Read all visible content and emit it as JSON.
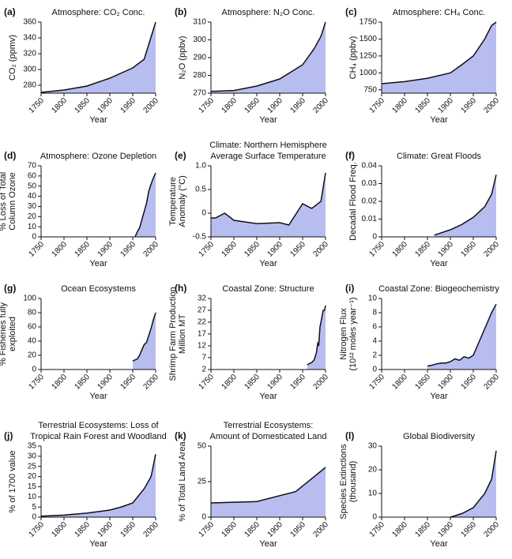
{
  "chart_data": [
    {
      "type": "area",
      "label": "(a)",
      "title": [
        "Atmosphere: CO₂ Conc."
      ],
      "ylabel": [
        "CO₂ (ppmv)"
      ],
      "xlabel": "Year",
      "x": [
        1750,
        1800,
        1850,
        1900,
        1950,
        1975,
        2000
      ],
      "values": [
        271,
        274,
        279,
        289,
        302,
        313,
        360
      ],
      "xlim": [
        1750,
        2000
      ],
      "xticks": [
        1750,
        1800,
        1850,
        1900,
        1950,
        2000
      ],
      "ylim": [
        270,
        360
      ],
      "yticks": [
        280,
        300,
        320,
        340,
        360
      ],
      "color": "#b8bdf0"
    },
    {
      "type": "area",
      "label": "(b)",
      "title": [
        "Atmosphere: N₂O Conc."
      ],
      "ylabel": [
        "N₂O (ppbv)"
      ],
      "xlabel": "Year",
      "x": [
        1750,
        1800,
        1850,
        1900,
        1950,
        1975,
        1990,
        2000
      ],
      "values": [
        271,
        271.5,
        274,
        278,
        286,
        295,
        302,
        310
      ],
      "xlim": [
        1750,
        2000
      ],
      "xticks": [
        1750,
        1800,
        1850,
        1900,
        1950,
        2000
      ],
      "ylim": [
        270,
        310
      ],
      "yticks": [
        270,
        280,
        290,
        300,
        310
      ],
      "color": "#b8bdf0"
    },
    {
      "type": "area",
      "label": "(c)",
      "title": [
        "Atmosphere: CH₄ Conc."
      ],
      "ylabel": [
        "CH₄ (ppbv)"
      ],
      "xlabel": "Year",
      "x": [
        1750,
        1800,
        1850,
        1900,
        1925,
        1950,
        1975,
        1990,
        2000
      ],
      "values": [
        840,
        870,
        920,
        1000,
        1120,
        1250,
        1500,
        1700,
        1750
      ],
      "xlim": [
        1750,
        2000
      ],
      "xticks": [
        1750,
        1800,
        1850,
        1900,
        1950,
        2000
      ],
      "ylim": [
        700,
        1750
      ],
      "yticks": [
        750,
        1000,
        1250,
        1500,
        1750
      ],
      "color": "#b8bdf0"
    },
    {
      "type": "area",
      "label": "(d)",
      "title": [
        "Atmosphere: Ozone Depletion"
      ],
      "ylabel": [
        "% Loss of Total",
        "Column Ozone"
      ],
      "xlabel": "Year",
      "x": [
        1955,
        1960,
        1965,
        1970,
        1975,
        1980,
        1985,
        1990,
        1995,
        2000
      ],
      "values": [
        0,
        5,
        9,
        17,
        25,
        33,
        45,
        52,
        58,
        63
      ],
      "xlim": [
        1750,
        2000
      ],
      "xticks": [
        1750,
        1800,
        1850,
        1900,
        1950,
        2000
      ],
      "ylim": [
        0,
        70
      ],
      "yticks": [
        0,
        10,
        20,
        30,
        40,
        50,
        60,
        70
      ],
      "color": "#b8bdf0"
    },
    {
      "type": "area",
      "label": "(e)",
      "title": [
        "Climate: Northern Hemisphere",
        "Average Surface Temperature"
      ],
      "ylabel": [
        "Temperature",
        "Anomaly (°C)"
      ],
      "xlabel": "Year",
      "x": [
        1750,
        1760,
        1780,
        1800,
        1850,
        1900,
        1920,
        1950,
        1970,
        1990,
        2000
      ],
      "values": [
        -0.1,
        -0.1,
        0,
        -0.15,
        -0.22,
        -0.2,
        -0.25,
        0.2,
        0.1,
        0.25,
        0.85
      ],
      "xlim": [
        1750,
        2000
      ],
      "xticks": [
        1750,
        1800,
        1850,
        1900,
        1950,
        2000
      ],
      "ylim": [
        -0.5,
        1
      ],
      "yticks": [
        -0.5,
        0,
        0.5,
        {
          "value": 1,
          "label": "1.0"
        }
      ],
      "color": "#b8bdf0"
    },
    {
      "type": "area",
      "label": "(f)",
      "title": [
        "Climate: Great Floods"
      ],
      "ylabel": [
        "Decadal Flood Freq."
      ],
      "xlabel": "Year",
      "x": [
        1865,
        1900,
        1925,
        1950,
        1975,
        1990,
        2000
      ],
      "values": [
        0.001,
        0.004,
        0.007,
        0.011,
        0.017,
        0.024,
        0.035
      ],
      "xlim": [
        1750,
        2000
      ],
      "xticks": [
        1750,
        1800,
        1850,
        1900,
        1950,
        2000
      ],
      "ylim": [
        0,
        0.04
      ],
      "yticks": [
        0,
        0.01,
        0.02,
        0.03,
        0.04
      ],
      "color": "#b8bdf0"
    },
    {
      "type": "area",
      "label": "(g)",
      "title": [
        "Ocean Ecosystems"
      ],
      "ylabel": [
        "% Fisheries fully",
        "exploited"
      ],
      "xlabel": "Year",
      "x": [
        1950,
        1960,
        1965,
        1970,
        1975,
        1980,
        1985,
        1990,
        1995,
        2000
      ],
      "values": [
        12,
        15,
        20,
        28,
        35,
        38,
        48,
        58,
        70,
        80
      ],
      "xlim": [
        1750,
        2000
      ],
      "xticks": [
        1750,
        1800,
        1850,
        1900,
        1950,
        2000
      ],
      "ylim": [
        0,
        100
      ],
      "yticks": [
        0,
        20,
        40,
        60,
        80,
        100
      ],
      "color": "#b8bdf0"
    },
    {
      "type": "area",
      "label": "(h)",
      "title": [
        "Coastal Zone: Structure"
      ],
      "ylabel": [
        "Shrimp Farm Production",
        "Million MT"
      ],
      "xlabel": "Year",
      "x": [
        1960,
        1970,
        1975,
        1980,
        1983,
        1985,
        1988,
        1990,
        1993,
        1995,
        1998,
        2000
      ],
      "values": [
        4,
        5,
        6,
        9,
        13,
        12,
        20,
        22,
        25,
        27,
        27,
        29
      ],
      "xlim": [
        1750,
        2000
      ],
      "xticks": [
        1750,
        1800,
        1850,
        1900,
        1950,
        2000
      ],
      "ylim": [
        2,
        32
      ],
      "yticks": [
        2,
        7,
        12,
        17,
        22,
        27,
        32
      ],
      "color": "#b8bdf0"
    },
    {
      "type": "area",
      "label": "(i)",
      "title": [
        "Coastal Zone: Biogeochemistry"
      ],
      "ylabel": [
        "Nitrogen Flux",
        "(10¹² moles year⁻¹)"
      ],
      "xlabel": "Year",
      "x": [
        1850,
        1860,
        1870,
        1880,
        1890,
        1900,
        1910,
        1920,
        1930,
        1940,
        1950,
        1960,
        1970,
        1980,
        1990,
        2000
      ],
      "values": [
        0.5,
        0.6,
        0.8,
        0.9,
        0.9,
        1.1,
        1.5,
        1.3,
        1.8,
        1.6,
        2,
        3.5,
        5,
        6.5,
        8,
        9.2
      ],
      "xlim": [
        1750,
        2000
      ],
      "xticks": [
        1750,
        1800,
        1850,
        1900,
        1950,
        2000
      ],
      "ylim": [
        0,
        10
      ],
      "yticks": [
        0,
        2,
        4,
        6,
        8,
        10
      ],
      "color": "#b8bdf0"
    },
    {
      "type": "area",
      "label": "(j)",
      "title": [
        "Terrestrial Ecosystems: Loss of",
        "Tropical Rain Forest and Woodland"
      ],
      "ylabel": [
        "% of 1700 value"
      ],
      "xlabel": "Year",
      "x": [
        1750,
        1800,
        1850,
        1900,
        1925,
        1950,
        1975,
        1990,
        2000
      ],
      "values": [
        0.5,
        1,
        2,
        3.5,
        5,
        7,
        14,
        20,
        31
      ],
      "xlim": [
        1750,
        2000
      ],
      "xticks": [
        1750,
        1800,
        1850,
        1900,
        1950,
        2000
      ],
      "ylim": [
        0,
        35
      ],
      "yticks": [
        0,
        5,
        10,
        15,
        20,
        25,
        30,
        35
      ],
      "color": "#b8bdf0"
    },
    {
      "type": "area",
      "label": "(k)",
      "title": [
        "Terrestrial Ecosystems:",
        "Amount of Domesticated Land"
      ],
      "ylabel": [
        "% of Total Land Area"
      ],
      "xlabel": "Year",
      "x": [
        1750,
        1850,
        1935,
        2000
      ],
      "values": [
        10,
        11,
        18,
        35
      ],
      "xlim": [
        1750,
        2000
      ],
      "xticks": [
        1750,
        1800,
        1850,
        1900,
        1950,
        2000
      ],
      "ylim": [
        0,
        50
      ],
      "yticks": [
        0,
        25,
        50
      ],
      "color": "#b8bdf0"
    },
    {
      "type": "area",
      "label": "(l)",
      "title": [
        "Global Biodiversity"
      ],
      "ylabel": [
        "Species Extinctions",
        "(thousand)"
      ],
      "xlabel": "Year",
      "x": [
        1900,
        1925,
        1950,
        1975,
        1990,
        2000
      ],
      "values": [
        0,
        1.5,
        4,
        10,
        16,
        28
      ],
      "xlim": [
        1750,
        2000
      ],
      "xticks": [
        1750,
        1800,
        1850,
        1900,
        1950,
        2000
      ],
      "ylim": [
        0,
        30
      ],
      "yticks": [
        0,
        10,
        20,
        30
      ],
      "color": "#b8bdf0"
    }
  ]
}
